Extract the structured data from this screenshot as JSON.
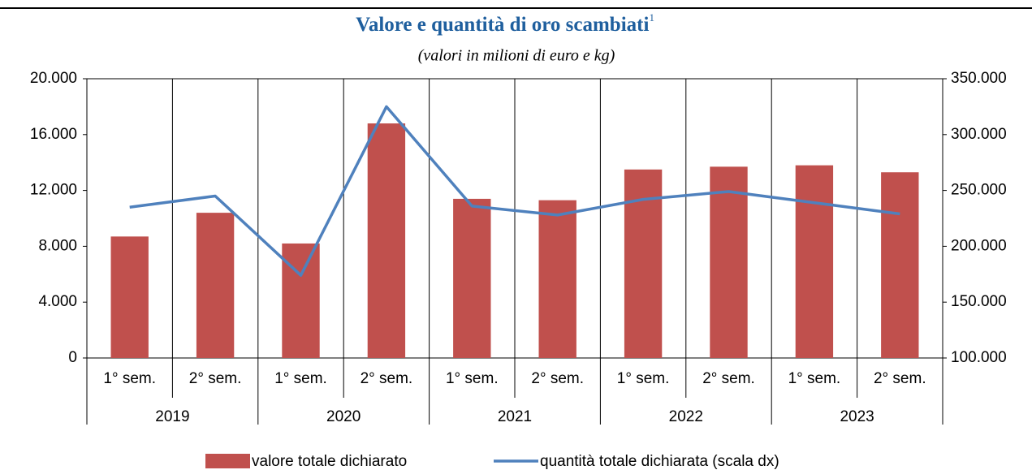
{
  "chart_data": {
    "type": "bar-line",
    "title": "Valore e quantità di oro scambiati",
    "title_note": "1",
    "subtitle": "(valori in milioni di euro e kg)",
    "categories": [
      "1° sem.",
      "2° sem.",
      "1° sem.",
      "2° sem.",
      "1° sem.",
      "2° sem.",
      "1° sem.",
      "2° sem.",
      "1° sem.",
      "2° sem."
    ],
    "category_groups": [
      "2019",
      "2020",
      "2021",
      "2022",
      "2023"
    ],
    "series": [
      {
        "name": "valore totale dichiarato",
        "type": "bar",
        "color": "#c0504d",
        "values": [
          8700,
          10400,
          8200,
          16800,
          11400,
          11300,
          13500,
          13700,
          13800,
          13300
        ]
      },
      {
        "name": "quantità totale dichiarata (scala dx)",
        "type": "line",
        "axis": "y2",
        "color": "#4f81bd",
        "values": [
          235000,
          245000,
          174000,
          325000,
          236000,
          228000,
          242000,
          249000,
          239000,
          229000
        ]
      }
    ],
    "ylim": [
      0,
      20000
    ],
    "yticks": [
      0,
      {
        "value": 4000,
        "label": "4.000"
      },
      {
        "value": 8000,
        "label": "8.000"
      },
      {
        "value": 12000,
        "label": "12.000"
      },
      {
        "value": 16000,
        "label": "16.000"
      },
      {
        "value": 20000,
        "label": "20.000"
      }
    ],
    "y2lim": [
      100000,
      350000
    ],
    "y2ticks": [
      {
        "value": 100000,
        "label": "100.000"
      },
      {
        "value": 150000,
        "label": "150.000"
      },
      {
        "value": 200000,
        "label": "200.000"
      },
      {
        "value": 250000,
        "label": "250.000"
      },
      {
        "value": 300000,
        "label": "300.000"
      },
      {
        "value": 350000,
        "label": "350.000"
      }
    ],
    "legend": "bottom"
  }
}
